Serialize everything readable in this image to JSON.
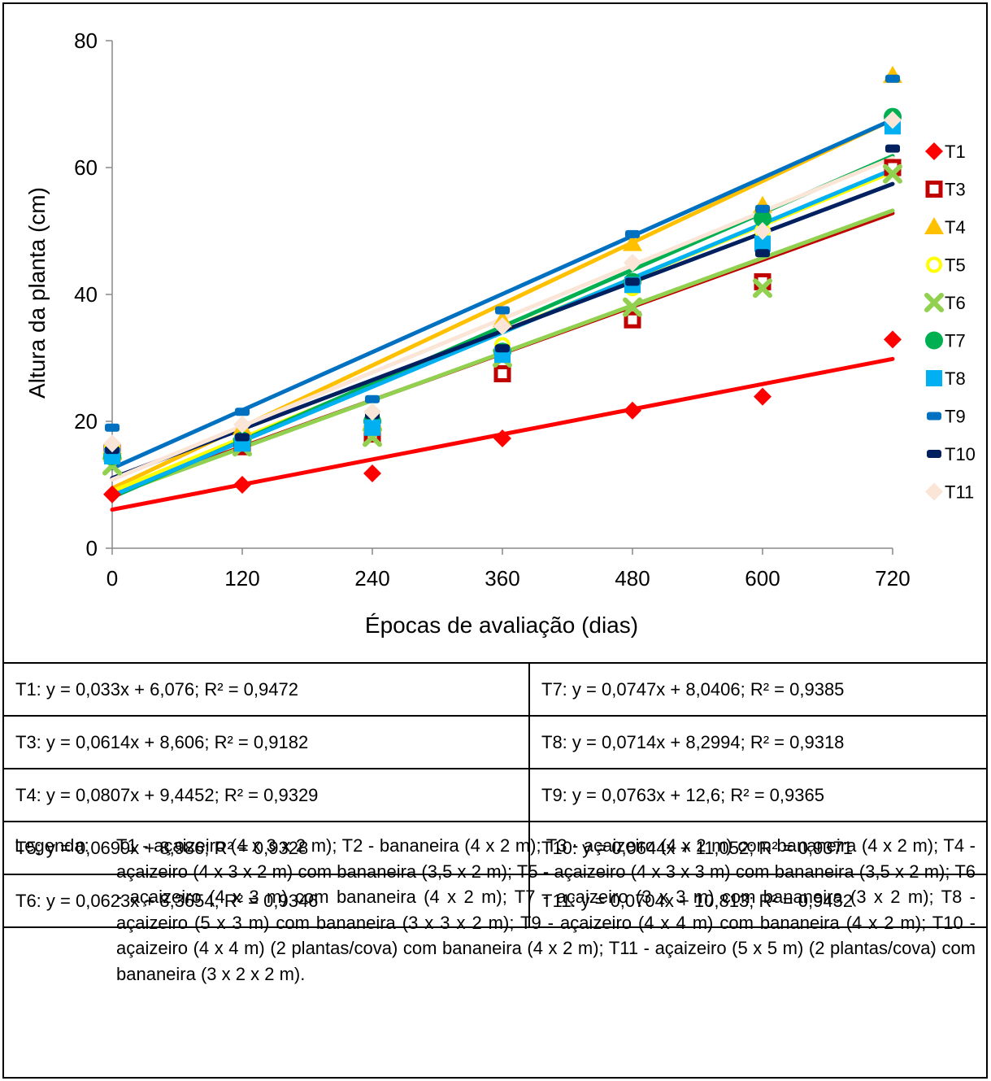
{
  "chart_data": {
    "type": "scatter",
    "title": "",
    "xlabel": "Épocas de avaliação (dias)",
    "ylabel": "Altura da planta (cm)",
    "xlim": [
      0,
      720
    ],
    "ylim": [
      0,
      80
    ],
    "xticks": [
      0,
      120,
      240,
      360,
      480,
      600,
      720
    ],
    "yticks": [
      0,
      20,
      40,
      60,
      80
    ],
    "grid": false,
    "legend_position": "right",
    "x": [
      0,
      120,
      240,
      360,
      480,
      600,
      720
    ],
    "series": [
      {
        "name": "T1",
        "color": "#ff0000",
        "marker": "diamond",
        "values": [
          8.5,
          10.0,
          11.8,
          17.3,
          21.7,
          23.9,
          32.9
        ],
        "trend": {
          "slope": 0.033,
          "intercept": 6.076
        }
      },
      {
        "name": "T3",
        "color": "#c00000",
        "marker": "square-open",
        "values": [
          15.0,
          16.0,
          18.0,
          27.5,
          36.0,
          42.0,
          60.0
        ],
        "trend": {
          "slope": 0.0614,
          "intercept": 8.606
        }
      },
      {
        "name": "T4",
        "color": "#ffc000",
        "marker": "triangle",
        "values": [
          16.0,
          19.0,
          20.0,
          36.0,
          48.0,
          54.0,
          74.5
        ],
        "trend": {
          "slope": 0.0807,
          "intercept": 9.4452
        }
      },
      {
        "name": "T5",
        "color": "#ffff00",
        "marker": "circle-open",
        "values": [
          16.0,
          17.0,
          19.0,
          32.0,
          41.0,
          50.0,
          67.0
        ],
        "trend": {
          "slope": 0.0699,
          "intercept": 8.986
        }
      },
      {
        "name": "T6",
        "color": "#92d050",
        "marker": "x",
        "values": [
          13.0,
          16.0,
          17.5,
          30.0,
          38.0,
          41.0,
          59.0
        ],
        "trend": {
          "slope": 0.0623,
          "intercept": 8.3654
        }
      },
      {
        "name": "T7",
        "color": "#00b050",
        "marker": "circle",
        "values": [
          14.5,
          17.0,
          20.0,
          31.0,
          42.0,
          52.0,
          68.0
        ],
        "trend": {
          "slope": 0.0747,
          "intercept": 8.0406
        }
      },
      {
        "name": "T8",
        "color": "#00b0f0",
        "marker": "square",
        "values": [
          14.5,
          16.5,
          19.0,
          30.5,
          41.5,
          48.0,
          66.5
        ],
        "trend": {
          "slope": 0.0714,
          "intercept": 8.2994
        }
      },
      {
        "name": "T9",
        "color": "#0070c0",
        "marker": "dash",
        "values": [
          19.0,
          21.5,
          23.5,
          37.5,
          49.5,
          53.5,
          74.0
        ],
        "trend": {
          "slope": 0.0763,
          "intercept": 12.6
        }
      },
      {
        "name": "T10",
        "color": "#002060",
        "marker": "dash",
        "values": [
          15.5,
          17.5,
          21.0,
          31.5,
          42.0,
          46.5,
          63.0
        ],
        "trend": {
          "slope": 0.0644,
          "intercept": 11.052
        }
      },
      {
        "name": "T11",
        "color": "#fbe5d6",
        "marker": "diamond",
        "values": [
          16.5,
          19.5,
          21.5,
          35.0,
          45.0,
          50.0,
          67.5
        ],
        "trend": {
          "slope": 0.0704,
          "intercept": 10.813
        }
      }
    ]
  },
  "equations": {
    "left": [
      "T1: y = 0,033x + 6,076; R² = 0,9472",
      "T3: y = 0,0614x + 8,606; R² = 0,9182",
      "T4: y = 0,0807x + 9,4452; R² = 0,9329",
      "T5: y = 0,0699x + 8,986; R² = 0,9328",
      "T6: y = 0,0623x + 8,3654; R² = 0,9346"
    ],
    "right": [
      "T7: y = 0,0747x + 8,0406; R² = 0,9385",
      "T8: y = 0,0714x + 8,2994; R² = 0,9318",
      "T9: y = 0,0763x + 12,6; R² = 0,9365",
      "T10: y = 0,0644x + 11,052; R² = 0,9371",
      "T11: y = 0,0704x + 10,813; R² = 0,9432"
    ]
  },
  "legend_note": {
    "label": "Legenda:",
    "text": "T1 - açaizeiro (4 x 3 x 2 m); T2 - bananeira (4 x 2 m); T3 - açaizeiro (4 x 2 m) com bananeira (4 x 2 m); T4 - açaizeiro (4 x 3 x 2 m) com bananeira (3,5 x 2 m); T5 - açaizeiro (4 x 3 x 3 m) com bananeira (3,5 x 2 m); T6 - açaizeiro (4 x 3 m) com bananeira (4 x 2 m); T7 - açaizeiro (3 x 3 m) com bananeira (3 x 2 m); T8 - açaizeiro (5 x 3 m) com bananeira (3 x 3 x 2 m); T9 - açaizeiro (4 x 4 m) com bananeira (4 x 2 m); T10 - açaizeiro (4 x 4 m) (2 plantas/cova) com bananeira (4 x 2 m); T11 - açaizeiro (5 x 5 m) (2 plantas/cova) com bananeira (3 x 2 x 2 m)."
  }
}
